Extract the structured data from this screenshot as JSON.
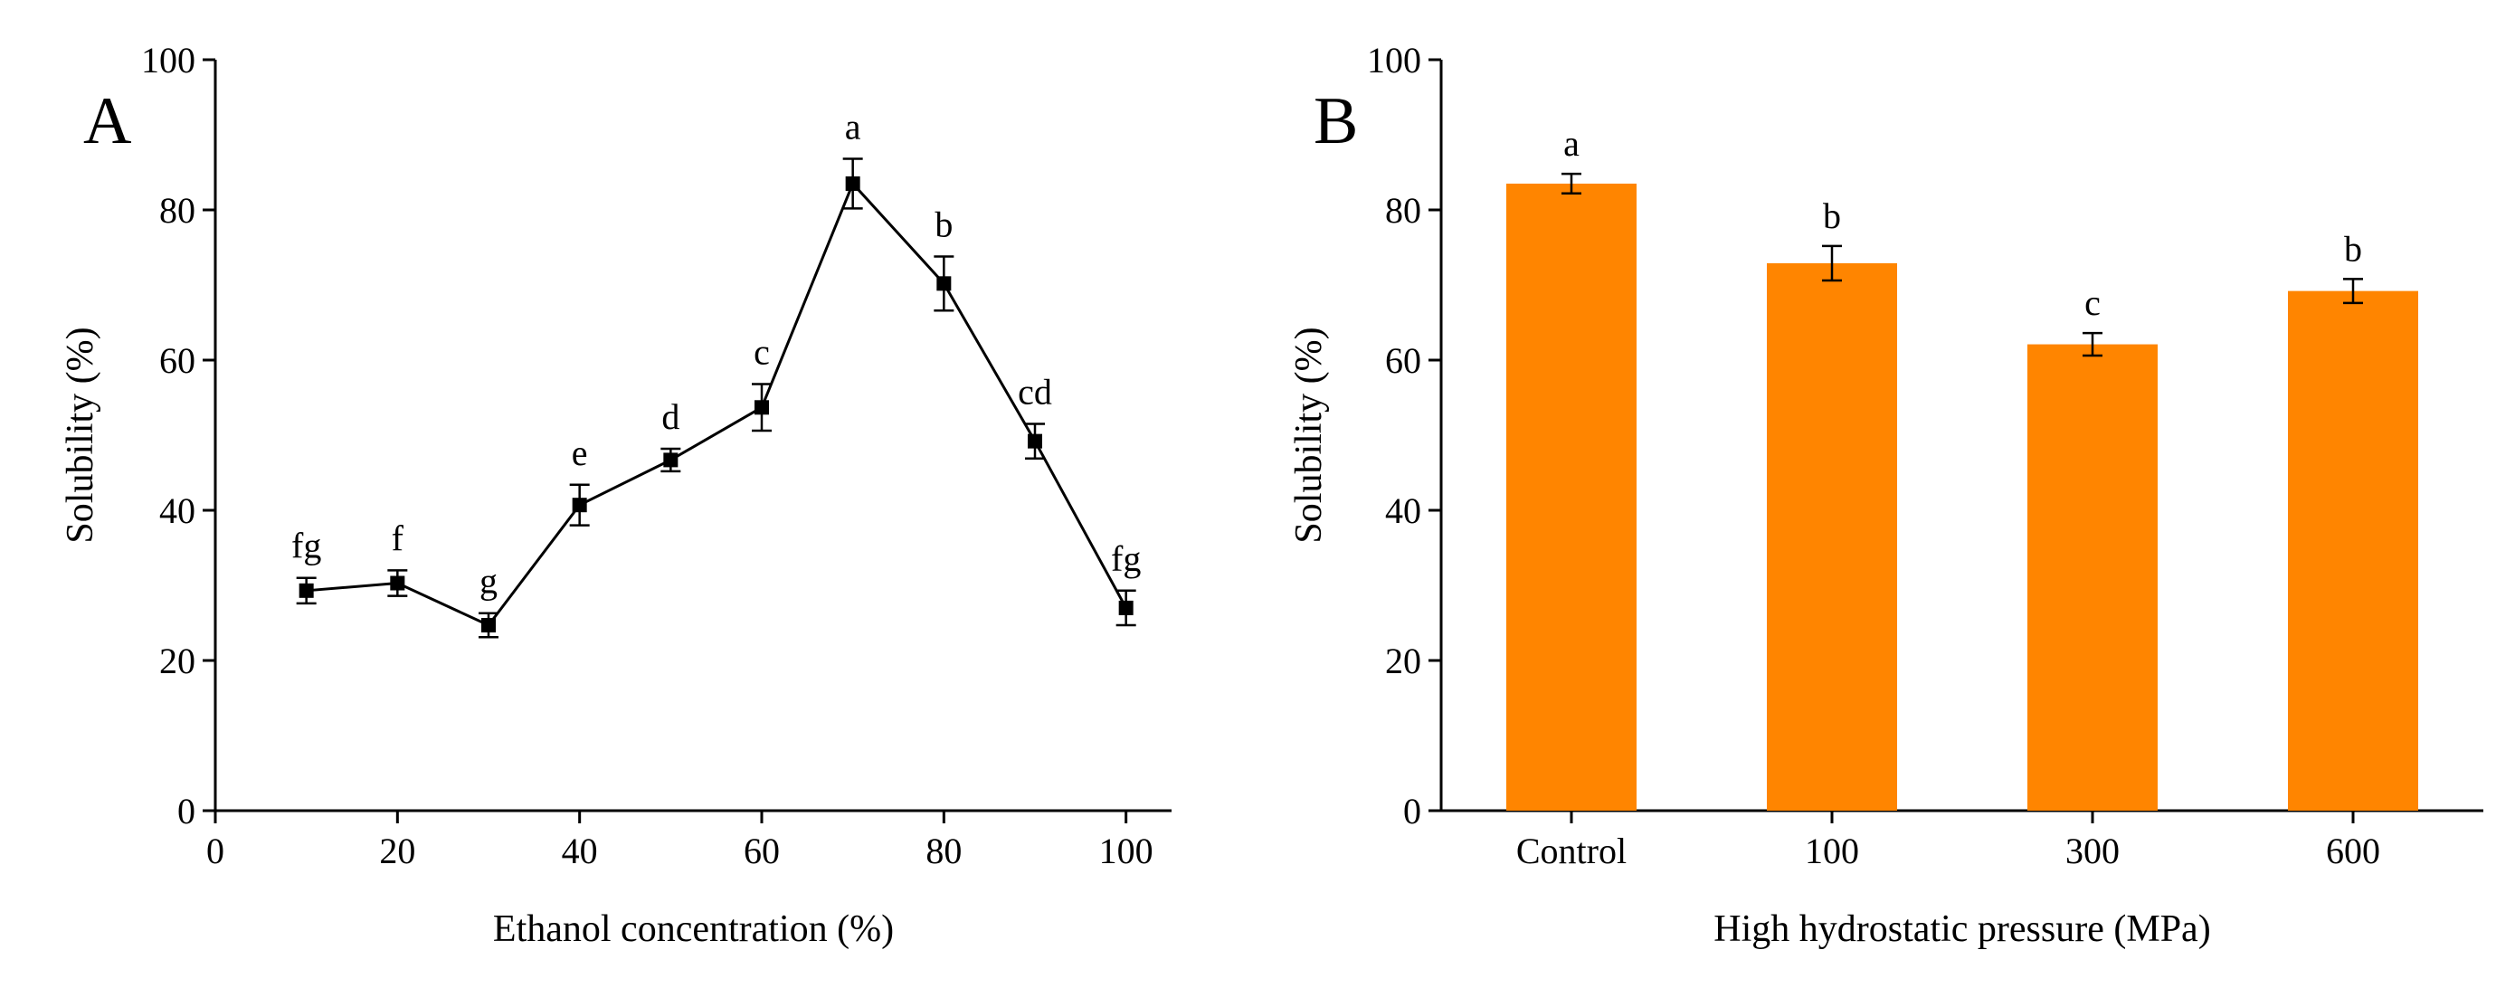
{
  "chart_data": [
    {
      "type": "line",
      "panel_label": "A",
      "title": "",
      "xlabel": "Ethanol concentration (%)",
      "ylabel": "Solubility (%)",
      "xlim": [
        0,
        105
      ],
      "ylim": [
        0,
        100
      ],
      "x_ticks": [
        0,
        20,
        40,
        60,
        80,
        100
      ],
      "y_ticks": [
        0,
        20,
        40,
        60,
        80,
        100
      ],
      "x_tick_labels": [
        "0",
        "20",
        "40",
        "60",
        "80",
        "100"
      ],
      "y_tick_labels": [
        "0",
        "20",
        "40",
        "60",
        "80",
        "100"
      ],
      "grid": false,
      "series": [
        {
          "name": "Solubility",
          "x": [
            10,
            20,
            30,
            40,
            50,
            60,
            70,
            80,
            90,
            100
          ],
          "values": [
            29.3,
            30.3,
            24.7,
            40.7,
            46.7,
            53.7,
            83.5,
            70.2,
            49.2,
            27.0
          ],
          "errors": [
            1.7,
            1.7,
            1.6,
            2.7,
            1.5,
            3.1,
            3.3,
            3.6,
            2.3,
            2.3
          ],
          "labels": [
            "fg",
            "f",
            "g",
            "e",
            "d",
            "c",
            "a",
            "b",
            "cd",
            "fg"
          ]
        }
      ]
    },
    {
      "type": "bar",
      "panel_label": "B",
      "title": "",
      "xlabel": "High hydrostatic pressure (MPa)",
      "ylabel": "Solubility (%)",
      "ylim": [
        0,
        100
      ],
      "y_ticks": [
        0,
        20,
        40,
        60,
        80,
        100
      ],
      "y_tick_labels": [
        "0",
        "20",
        "40",
        "60",
        "80",
        "100"
      ],
      "categories": [
        "Control",
        "100",
        "300",
        "600"
      ],
      "grid": false,
      "bar_color": "#ff8500",
      "series": [
        {
          "name": "Solubility",
          "values": [
            83.5,
            72.9,
            62.1,
            69.2
          ],
          "errors": [
            1.3,
            2.3,
            1.5,
            1.6
          ],
          "labels": [
            "a",
            "b",
            "c",
            "b"
          ]
        }
      ]
    }
  ]
}
